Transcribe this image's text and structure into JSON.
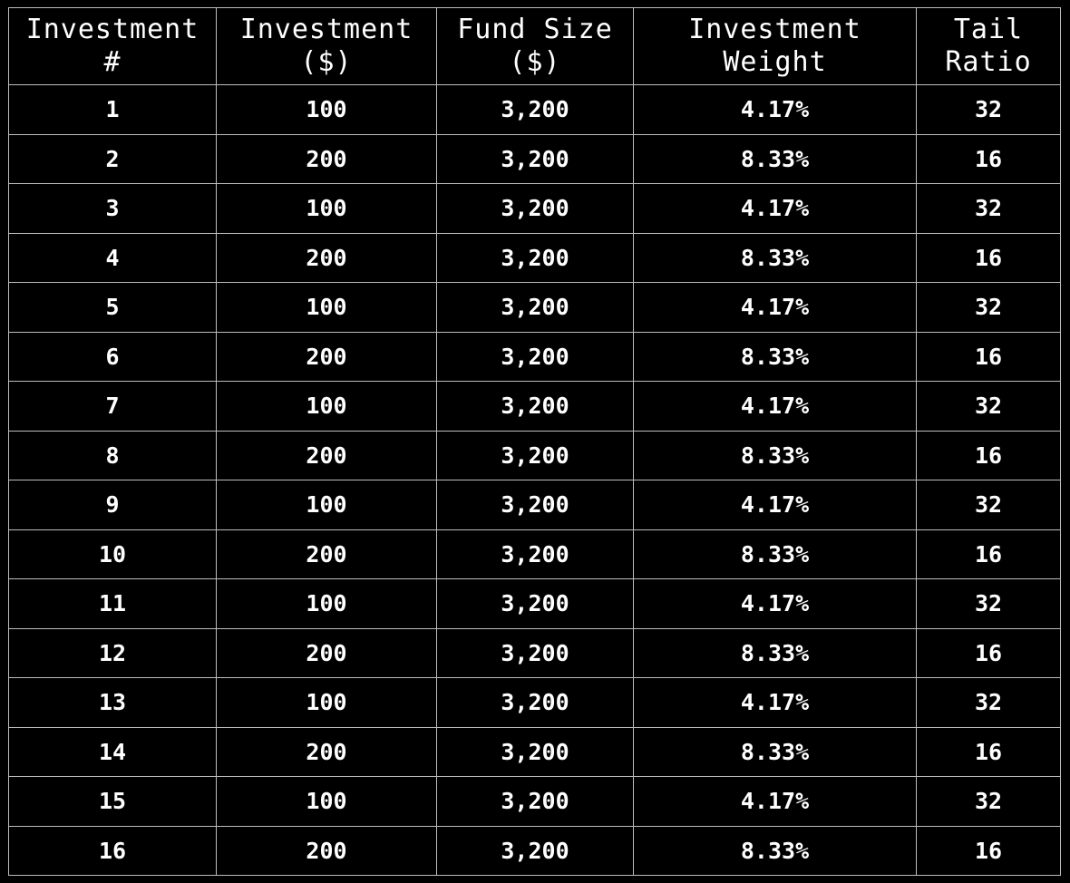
{
  "chart_data": {
    "type": "table",
    "columns": [
      {
        "key": "investment_no",
        "label": "Investment #",
        "lines": [
          "Investment",
          "#"
        ]
      },
      {
        "key": "investment",
        "label": "Investment ($)",
        "lines": [
          "Investment",
          "($)"
        ]
      },
      {
        "key": "fund_size",
        "label": "Fund Size ($)",
        "lines": [
          "Fund Size",
          "($)"
        ]
      },
      {
        "key": "weight",
        "label": "Investment Weight",
        "lines": [
          "Investment",
          "Weight"
        ]
      },
      {
        "key": "tail_ratio",
        "label": "Tail Ratio",
        "lines": [
          "Tail",
          "Ratio"
        ]
      }
    ],
    "rows": [
      [
        "1",
        "100",
        "3,200",
        "4.17%",
        "32"
      ],
      [
        "2",
        "200",
        "3,200",
        "8.33%",
        "16"
      ],
      [
        "3",
        "100",
        "3,200",
        "4.17%",
        "32"
      ],
      [
        "4",
        "200",
        "3,200",
        "8.33%",
        "16"
      ],
      [
        "5",
        "100",
        "3,200",
        "4.17%",
        "32"
      ],
      [
        "6",
        "200",
        "3,200",
        "8.33%",
        "16"
      ],
      [
        "7",
        "100",
        "3,200",
        "4.17%",
        "32"
      ],
      [
        "8",
        "200",
        "3,200",
        "8.33%",
        "16"
      ],
      [
        "9",
        "100",
        "3,200",
        "4.17%",
        "32"
      ],
      [
        "10",
        "200",
        "3,200",
        "8.33%",
        "16"
      ],
      [
        "11",
        "100",
        "3,200",
        "4.17%",
        "32"
      ],
      [
        "12",
        "200",
        "3,200",
        "8.33%",
        "16"
      ],
      [
        "13",
        "100",
        "3,200",
        "4.17%",
        "32"
      ],
      [
        "14",
        "200",
        "3,200",
        "8.33%",
        "16"
      ],
      [
        "15",
        "100",
        "3,200",
        "4.17%",
        "32"
      ],
      [
        "16",
        "200",
        "3,200",
        "8.33%",
        "16"
      ]
    ]
  },
  "colors": {
    "background": "#000000",
    "text": "#ffffff",
    "grid": "#bdbdbd"
  }
}
